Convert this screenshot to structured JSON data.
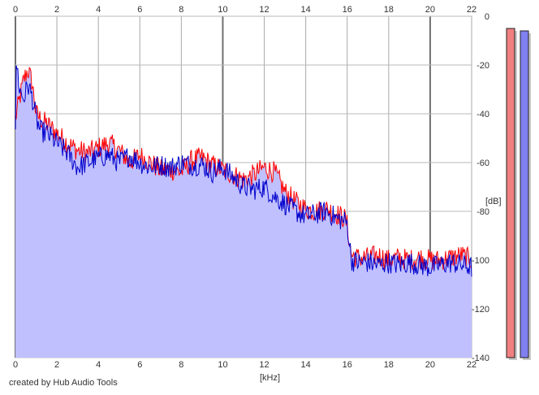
{
  "chart_data": {
    "type": "line",
    "title": "",
    "xlabel": "[kHz]",
    "ylabel": "[dB]",
    "xlim": [
      0,
      22
    ],
    "ylim": [
      -140,
      0
    ],
    "x_ticks": [
      0,
      2,
      4,
      6,
      8,
      10,
      12,
      14,
      16,
      18,
      20,
      22
    ],
    "y_ticks": [
      0,
      -20,
      -40,
      -60,
      -80,
      -100,
      -120,
      -140
    ],
    "grid": true,
    "legend": "none",
    "series": [
      {
        "color": "#ff0000",
        "points": [
          [
            0,
            -42
          ],
          [
            0.2,
            -34
          ],
          [
            0.4,
            -26
          ],
          [
            0.6,
            -22
          ],
          [
            0.8,
            -27
          ],
          [
            1.0,
            -40
          ],
          [
            1.2,
            -42
          ],
          [
            1.5,
            -44
          ],
          [
            2.0,
            -48
          ],
          [
            2.5,
            -52
          ],
          [
            3.0,
            -55
          ],
          [
            3.5,
            -56
          ],
          [
            4.0,
            -54
          ],
          [
            4.5,
            -52
          ],
          [
            5.0,
            -55
          ],
          [
            5.5,
            -60
          ],
          [
            6.0,
            -57
          ],
          [
            6.5,
            -60
          ],
          [
            7.0,
            -63
          ],
          [
            7.5,
            -63
          ],
          [
            8.0,
            -64
          ],
          [
            8.5,
            -59
          ],
          [
            9.0,
            -58
          ],
          [
            9.5,
            -61
          ],
          [
            10.0,
            -63
          ],
          [
            10.5,
            -65
          ],
          [
            11.0,
            -67
          ],
          [
            11.5,
            -65
          ],
          [
            12.0,
            -62
          ],
          [
            12.5,
            -64
          ],
          [
            13.0,
            -72
          ],
          [
            13.5,
            -76
          ],
          [
            14.0,
            -79
          ],
          [
            14.5,
            -80
          ],
          [
            15.0,
            -79
          ],
          [
            15.5,
            -81
          ],
          [
            15.9,
            -83
          ],
          [
            16.0,
            -86
          ],
          [
            16.2,
            -98
          ],
          [
            16.5,
            -99
          ],
          [
            17.0,
            -99
          ],
          [
            17.5,
            -98
          ],
          [
            18.0,
            -100
          ],
          [
            18.5,
            -99
          ],
          [
            19.0,
            -100
          ],
          [
            19.5,
            -99
          ],
          [
            20.0,
            -100
          ],
          [
            20.5,
            -100
          ],
          [
            21.0,
            -99
          ],
          [
            21.5,
            -98
          ],
          [
            22.0,
            -100
          ]
        ]
      },
      {
        "color": "#0000cc",
        "points": [
          [
            0,
            -45
          ],
          [
            0.05,
            -18
          ],
          [
            0.2,
            -30
          ],
          [
            0.4,
            -34
          ],
          [
            0.6,
            -28
          ],
          [
            0.8,
            -33
          ],
          [
            1.0,
            -42
          ],
          [
            1.2,
            -47
          ],
          [
            1.5,
            -48
          ],
          [
            2.0,
            -52
          ],
          [
            2.5,
            -56
          ],
          [
            3.0,
            -62
          ],
          [
            3.5,
            -60
          ],
          [
            4.0,
            -58
          ],
          [
            4.5,
            -57
          ],
          [
            5.0,
            -60
          ],
          [
            5.5,
            -57
          ],
          [
            6.0,
            -60
          ],
          [
            6.5,
            -62
          ],
          [
            7.0,
            -61
          ],
          [
            7.5,
            -62
          ],
          [
            8.0,
            -60
          ],
          [
            8.5,
            -61
          ],
          [
            9.0,
            -61
          ],
          [
            9.5,
            -64
          ],
          [
            10.0,
            -62
          ],
          [
            10.5,
            -66
          ],
          [
            11.0,
            -70
          ],
          [
            11.5,
            -71
          ],
          [
            12.0,
            -70
          ],
          [
            12.5,
            -74
          ],
          [
            13.0,
            -77
          ],
          [
            13.5,
            -80
          ],
          [
            14.0,
            -82
          ],
          [
            14.5,
            -81
          ],
          [
            15.0,
            -80
          ],
          [
            15.5,
            -83
          ],
          [
            15.9,
            -84
          ],
          [
            16.0,
            -85
          ],
          [
            16.2,
            -100
          ],
          [
            16.5,
            -101
          ],
          [
            17.0,
            -101
          ],
          [
            17.5,
            -102
          ],
          [
            18.0,
            -101
          ],
          [
            18.5,
            -102
          ],
          [
            19.0,
            -101
          ],
          [
            19.5,
            -102
          ],
          [
            20.0,
            -103
          ],
          [
            20.5,
            -102
          ],
          [
            21.0,
            -101
          ],
          [
            21.5,
            -102
          ],
          [
            22.0,
            -103
          ]
        ]
      }
    ],
    "fill_color": "#c0c0ff",
    "level_meters": [
      {
        "color": "#f08080",
        "value": -5
      },
      {
        "color": "#8080f0",
        "value": -6
      }
    ]
  },
  "footer": {
    "credit": "created by Hub Audio Tools"
  }
}
